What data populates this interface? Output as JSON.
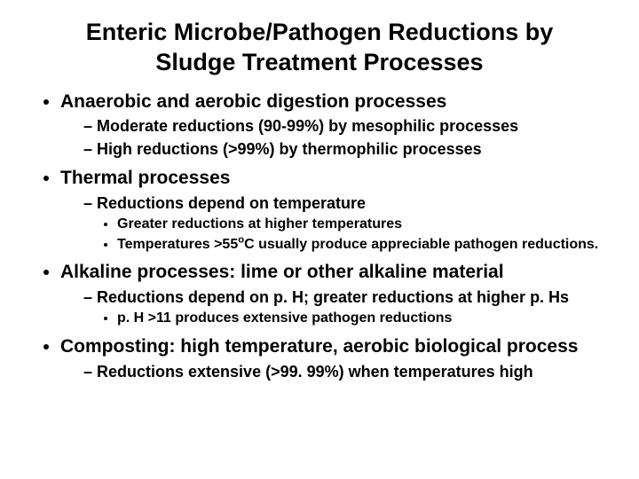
{
  "title_line1": "Enteric Microbe/Pathogen Reductions by",
  "title_line2": "Sludge Treatment Processes",
  "items": {
    "b1": "Anaerobic and aerobic digestion processes",
    "b1s1": "Moderate reductions (90-99%) by mesophilic processes",
    "b1s2": "High reductions (>99%) by thermophilic processes",
    "b2": "Thermal processes",
    "b2s1": "Reductions depend on temperature",
    "b2s1a": "Greater reductions at higher temperatures",
    "b2s1b_pre": "Temperatures >55",
    "b2s1b_sup": "o",
    "b2s1b_post": "C usually produce appreciable pathogen reductions.",
    "b3": "Alkaline processes:  lime or other alkaline material",
    "b3s1": "Reductions depend on p. H; greater reductions at higher p. Hs",
    "b3s1a": "p. H >11 produces extensive pathogen reductions",
    "b4": "Composting:  high temperature, aerobic biological process",
    "b4s1": "Reductions extensive (>99. 99%) when temperatures high"
  }
}
